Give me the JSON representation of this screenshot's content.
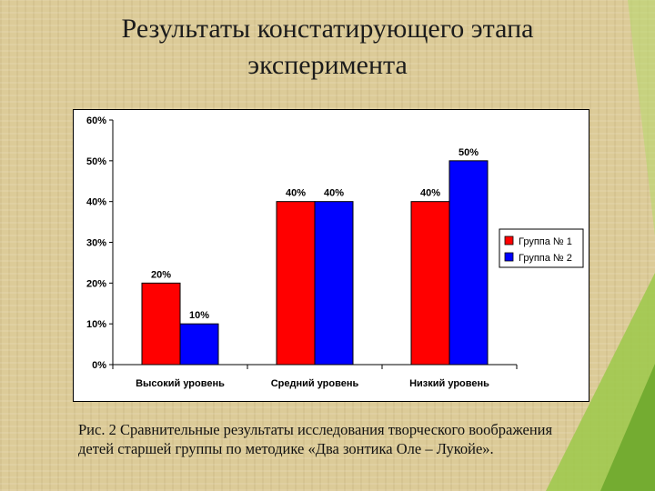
{
  "slide": {
    "title_line1": "Результаты констатирующего этапа",
    "title_line2": "эксперимента",
    "caption_line1": "Рис. 2 Сравнительные результаты исследования творческого воображения",
    "caption_line2": "детей старшей группы по методике «Два зонтика Оле – Лукойе»."
  },
  "colors": {
    "series1": "#ff0000",
    "series2": "#0000ff",
    "accent_green": "#8cc63f"
  },
  "chart_data": {
    "type": "bar",
    "categories": [
      "Высокий уровень",
      "Средний уровень",
      "Низкий уровень"
    ],
    "series": [
      {
        "name": "Группа № 1",
        "values": [
          20,
          40,
          40
        ],
        "color": "#ff0000"
      },
      {
        "name": "Группа № 2",
        "values": [
          10,
          40,
          50
        ],
        "color": "#0000ff"
      }
    ],
    "ylim": [
      0,
      60
    ],
    "yticks": [
      "0%",
      "10%",
      "20%",
      "30%",
      "40%",
      "50%",
      "60%"
    ],
    "value_format": "percent",
    "legend": "right",
    "grid": false,
    "xlabel": "",
    "ylabel": ""
  }
}
